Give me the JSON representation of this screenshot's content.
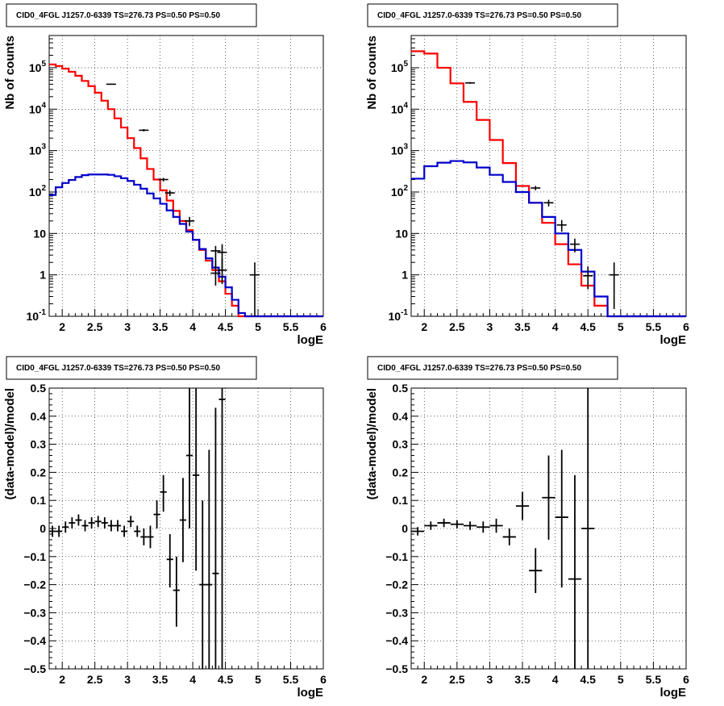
{
  "chart_data": [
    {
      "type": "line",
      "title": "CID0_4FGL J1257.0-6339 TS=276.73 PS=0.50 PS=0.50",
      "xlabel": "logE",
      "ylabel": "Nb of counts",
      "xlim": [
        1.8,
        6.0
      ],
      "ylim": [
        0.1,
        600000
      ],
      "log_y": true,
      "grid": true,
      "x_ticks": [
        "2",
        "2.5",
        "3",
        "3.5",
        "4",
        "4.5",
        "5",
        "5.5",
        "6"
      ],
      "y_ticks": [
        {
          "label": "10",
          "exp": "-1",
          "value": 0.1
        },
        {
          "label": "1",
          "exp": "",
          "value": 1
        },
        {
          "label": "10",
          "exp": "",
          "value": 10
        },
        {
          "label": "10",
          "exp": "2",
          "value": 100
        },
        {
          "label": "10",
          "exp": "3",
          "value": 1000
        },
        {
          "label": "10",
          "exp": "4",
          "value": 10000
        },
        {
          "label": "10",
          "exp": "5",
          "value": 100000
        }
      ],
      "bin_edges": [
        1.8,
        1.9,
        2.0,
        2.1,
        2.2,
        2.3,
        2.4,
        2.5,
        2.6,
        2.7,
        2.8,
        2.9,
        3.0,
        3.1,
        3.2,
        3.3,
        3.4,
        3.5,
        3.6,
        3.7,
        3.8,
        3.9,
        4.0,
        4.1,
        4.2,
        4.3,
        4.4,
        4.5,
        4.6,
        4.7,
        4.8,
        4.9,
        5.0,
        5.1,
        5.2,
        5.3,
        5.4,
        5.5,
        5.6,
        5.7,
        5.8,
        5.9,
        6.0
      ],
      "series": [
        {
          "role": "total_model",
          "color": "#ff0000",
          "values": [
            120000,
            110000,
            95000,
            80000,
            64000,
            48000,
            36000,
            25000,
            16000,
            10000,
            6000,
            3600,
            2000,
            1150,
            650,
            360,
            200,
            110,
            62,
            35,
            20,
            12,
            7,
            4,
            2.2,
            1.3,
            0.7,
            0.35,
            0.18,
            0.1,
            0.1,
            0.1,
            0.1,
            0.1,
            0.1,
            0.1,
            0.1,
            0.1,
            0.1,
            0.1,
            0.1,
            0.1
          ]
        },
        {
          "role": "source_model",
          "color": "#0000cc",
          "values": [
            85,
            130,
            165,
            195,
            230,
            255,
            265,
            265,
            265,
            260,
            240,
            215,
            185,
            150,
            120,
            92,
            70,
            52,
            36,
            25,
            17,
            11,
            7,
            4.2,
            2.5,
            1.5,
            0.9,
            0.5,
            0.25,
            0.12,
            0.1,
            0.1,
            0.1,
            0.1,
            0.1,
            0.1,
            0.1,
            0.1,
            0.1,
            0.1,
            0.1,
            0.1
          ]
        }
      ],
      "data_points": [
        {
          "x": 2.75,
          "y": 40000,
          "lo": 39000,
          "hi": 41000
        },
        {
          "x": 3.25,
          "y": 3100,
          "lo": 2900,
          "hi": 3300
        },
        {
          "x": 3.55,
          "y": 200,
          "lo": 180,
          "hi": 220
        },
        {
          "x": 3.65,
          "y": 95,
          "lo": 80,
          "hi": 110
        },
        {
          "x": 3.95,
          "y": 20,
          "lo": 15,
          "hi": 25
        },
        {
          "x": 4.35,
          "y": 3.8,
          "lo": 1.5,
          "hi": 5
        },
        {
          "x": 4.45,
          "y": 3.5,
          "lo": 1.2,
          "hi": 5.5
        },
        {
          "x": 4.35,
          "y": 1.1,
          "lo": 0.55,
          "hi": 2.2
        },
        {
          "x": 4.45,
          "y": 1.3,
          "lo": 0.6,
          "hi": 2.5
        },
        {
          "x": 4.95,
          "y": 1.0,
          "lo": 0.1,
          "hi": 2.0
        }
      ]
    },
    {
      "type": "line",
      "title": "CID0_4FGL J1257.0-6339 TS=276.73 PS=0.50 PS=0.50",
      "xlabel": "logE",
      "ylabel": "Nb of counts",
      "xlim": [
        1.8,
        6.0
      ],
      "ylim": [
        0.1,
        600000
      ],
      "log_y": true,
      "grid": true,
      "x_ticks": [
        "2",
        "2.5",
        "3",
        "3.5",
        "4",
        "4.5",
        "5",
        "5.5",
        "6"
      ],
      "y_ticks": [
        {
          "label": "10",
          "exp": "-1",
          "value": 0.1
        },
        {
          "label": "1",
          "exp": "",
          "value": 1
        },
        {
          "label": "10",
          "exp": "",
          "value": 10
        },
        {
          "label": "10",
          "exp": "2",
          "value": 100
        },
        {
          "label": "10",
          "exp": "3",
          "value": 1000
        },
        {
          "label": "10",
          "exp": "4",
          "value": 10000
        },
        {
          "label": "10",
          "exp": "5",
          "value": 100000
        }
      ],
      "bin_edges": [
        1.8,
        2.0,
        2.2,
        2.4,
        2.6,
        2.8,
        3.0,
        3.2,
        3.4,
        3.6,
        3.8,
        4.0,
        4.2,
        4.4,
        4.6,
        4.8,
        5.0,
        5.2,
        5.4,
        5.6,
        5.8,
        6.0
      ],
      "series": [
        {
          "role": "total_model",
          "color": "#ff0000",
          "values": [
            250000,
            220000,
            100000,
            42000,
            15000,
            5500,
            1800,
            500,
            140,
            55,
            18,
            5.5,
            1.8,
            0.55,
            0.18,
            0.1,
            0.1,
            0.1,
            0.1,
            0.1,
            0.1
          ]
        },
        {
          "role": "source_model",
          "color": "#0000cc",
          "values": [
            210,
            420,
            510,
            560,
            520,
            390,
            260,
            175,
            100,
            55,
            25,
            10,
            4,
            1.2,
            0.3,
            0.1,
            0.1,
            0.1,
            0.1,
            0.1,
            0.1
          ]
        }
      ],
      "data_points": [
        {
          "x": 2.7,
          "y": 43000,
          "lo": 41000,
          "hi": 45000
        },
        {
          "x": 3.7,
          "y": 125,
          "lo": 110,
          "hi": 140
        },
        {
          "x": 3.9,
          "y": 55,
          "lo": 45,
          "hi": 65
        },
        {
          "x": 4.1,
          "y": 16,
          "lo": 11,
          "hi": 21
        },
        {
          "x": 4.3,
          "y": 5.5,
          "lo": 3.5,
          "hi": 7.5
        },
        {
          "x": 4.5,
          "y": 0.95,
          "lo": 0.45,
          "hi": 1.6
        },
        {
          "x": 4.9,
          "y": 1.0,
          "lo": 0.15,
          "hi": 2.0
        }
      ]
    },
    {
      "type": "scatter",
      "title": "CID0_4FGL J1257.0-6339 TS=276.73 PS=0.50 PS=0.50",
      "xlabel": "logE",
      "ylabel": "(data-model)/model",
      "xlim": [
        1.8,
        6.0
      ],
      "ylim": [
        -0.5,
        0.5
      ],
      "grid": true,
      "x_ticks": [
        "2",
        "2.5",
        "3",
        "3.5",
        "4",
        "4.5",
        "5",
        "5.5",
        "6"
      ],
      "y_ticks": [
        "-0.5",
        "-0.4",
        "-0.3",
        "-0.2",
        "-0.1",
        "0",
        "0.1",
        "0.2",
        "0.3",
        "0.4",
        "0.5"
      ],
      "points": [
        {
          "x": 1.85,
          "xerr": 0.05,
          "y": -0.01,
          "lo": -0.03,
          "hi": 0.01
        },
        {
          "x": 1.95,
          "xerr": 0.05,
          "y": -0.01,
          "lo": -0.03,
          "hi": 0.01
        },
        {
          "x": 2.05,
          "xerr": 0.05,
          "y": 0.005,
          "lo": -0.015,
          "hi": 0.025
        },
        {
          "x": 2.15,
          "xerr": 0.05,
          "y": 0.02,
          "lo": 0.0,
          "hi": 0.04
        },
        {
          "x": 2.25,
          "xerr": 0.05,
          "y": 0.03,
          "lo": 0.01,
          "hi": 0.05
        },
        {
          "x": 2.35,
          "xerr": 0.05,
          "y": 0.01,
          "lo": -0.01,
          "hi": 0.03
        },
        {
          "x": 2.45,
          "xerr": 0.05,
          "y": 0.02,
          "lo": 0.0,
          "hi": 0.04
        },
        {
          "x": 2.55,
          "xerr": 0.05,
          "y": 0.025,
          "lo": 0.005,
          "hi": 0.045
        },
        {
          "x": 2.65,
          "xerr": 0.05,
          "y": 0.02,
          "lo": 0.0,
          "hi": 0.04
        },
        {
          "x": 2.75,
          "xerr": 0.05,
          "y": 0.01,
          "lo": -0.01,
          "hi": 0.03
        },
        {
          "x": 2.85,
          "xerr": 0.05,
          "y": 0.01,
          "lo": -0.01,
          "hi": 0.03
        },
        {
          "x": 2.95,
          "xerr": 0.05,
          "y": -0.01,
          "lo": -0.03,
          "hi": 0.01
        },
        {
          "x": 3.05,
          "xerr": 0.05,
          "y": 0.025,
          "lo": 0.005,
          "hi": 0.045
        },
        {
          "x": 3.15,
          "xerr": 0.05,
          "y": -0.01,
          "lo": -0.03,
          "hi": 0.01
        },
        {
          "x": 3.25,
          "xerr": 0.05,
          "y": -0.03,
          "lo": -0.06,
          "hi": 0.0
        },
        {
          "x": 3.35,
          "xerr": 0.05,
          "y": -0.03,
          "lo": -0.07,
          "hi": 0.01
        },
        {
          "x": 3.45,
          "xerr": 0.05,
          "y": 0.05,
          "lo": 0.0,
          "hi": 0.1
        },
        {
          "x": 3.55,
          "xerr": 0.05,
          "y": 0.13,
          "lo": 0.06,
          "hi": 0.19
        },
        {
          "x": 3.65,
          "xerr": 0.05,
          "y": -0.11,
          "lo": -0.21,
          "hi": -0.02
        },
        {
          "x": 3.75,
          "xerr": 0.05,
          "y": -0.22,
          "lo": -0.35,
          "hi": -0.1
        },
        {
          "x": 3.85,
          "xerr": 0.05,
          "y": 0.03,
          "lo": -0.12,
          "hi": 0.18
        },
        {
          "x": 3.95,
          "xerr": 0.05,
          "y": 0.26,
          "lo": 0.0,
          "hi": 0.5
        },
        {
          "x": 4.05,
          "xerr": 0.05,
          "y": 0.19,
          "lo": -0.15,
          "hi": 0.5
        },
        {
          "x": 4.15,
          "xerr": 0.05,
          "y": -0.2,
          "lo": -0.5,
          "hi": 0.1
        },
        {
          "x": 4.25,
          "xerr": 0.05,
          "y": -0.2,
          "lo": -0.5,
          "hi": 0.28
        },
        {
          "x": 4.35,
          "xerr": 0.05,
          "y": -0.16,
          "lo": -0.5,
          "hi": 0.43
        },
        {
          "x": 4.45,
          "xerr": 0.05,
          "y": 0.46,
          "lo": -0.5,
          "hi": 0.5
        }
      ]
    },
    {
      "type": "scatter",
      "title": "CID0_4FGL J1257.0-6339 TS=276.73 PS=0.50 PS=0.50",
      "xlabel": "logE",
      "ylabel": "(data-model)/model",
      "xlim": [
        1.8,
        6.0
      ],
      "ylim": [
        -0.5,
        0.5
      ],
      "grid": true,
      "x_ticks": [
        "2",
        "2.5",
        "3",
        "3.5",
        "4",
        "4.5",
        "5",
        "5.5",
        "6"
      ],
      "y_ticks": [
        "-0.5",
        "-0.4",
        "-0.3",
        "-0.2",
        "-0.1",
        "0",
        "0.1",
        "0.2",
        "0.3",
        "0.4",
        "0.5"
      ],
      "points": [
        {
          "x": 1.9,
          "xerr": 0.1,
          "y": -0.01,
          "lo": -0.025,
          "hi": 0.005
        },
        {
          "x": 2.1,
          "xerr": 0.1,
          "y": 0.01,
          "lo": -0.005,
          "hi": 0.025
        },
        {
          "x": 2.3,
          "xerr": 0.1,
          "y": 0.02,
          "lo": 0.005,
          "hi": 0.035
        },
        {
          "x": 2.5,
          "xerr": 0.1,
          "y": 0.015,
          "lo": 0.0,
          "hi": 0.03
        },
        {
          "x": 2.7,
          "xerr": 0.1,
          "y": 0.01,
          "lo": -0.005,
          "hi": 0.025
        },
        {
          "x": 2.9,
          "xerr": 0.1,
          "y": 0.005,
          "lo": -0.015,
          "hi": 0.025
        },
        {
          "x": 3.1,
          "xerr": 0.1,
          "y": 0.01,
          "lo": -0.015,
          "hi": 0.035
        },
        {
          "x": 3.3,
          "xerr": 0.1,
          "y": -0.03,
          "lo": -0.06,
          "hi": 0.0
        },
        {
          "x": 3.5,
          "xerr": 0.1,
          "y": 0.08,
          "lo": 0.03,
          "hi": 0.13
        },
        {
          "x": 3.7,
          "xerr": 0.1,
          "y": -0.15,
          "lo": -0.23,
          "hi": -0.07
        },
        {
          "x": 3.9,
          "xerr": 0.1,
          "y": 0.11,
          "lo": -0.04,
          "hi": 0.26
        },
        {
          "x": 4.1,
          "xerr": 0.1,
          "y": 0.04,
          "lo": -0.21,
          "hi": 0.28
        },
        {
          "x": 4.3,
          "xerr": 0.1,
          "y": -0.18,
          "lo": -0.5,
          "hi": 0.19
        },
        {
          "x": 4.5,
          "xerr": 0.1,
          "y": 0.0,
          "lo": -0.5,
          "hi": 0.5
        }
      ]
    }
  ]
}
